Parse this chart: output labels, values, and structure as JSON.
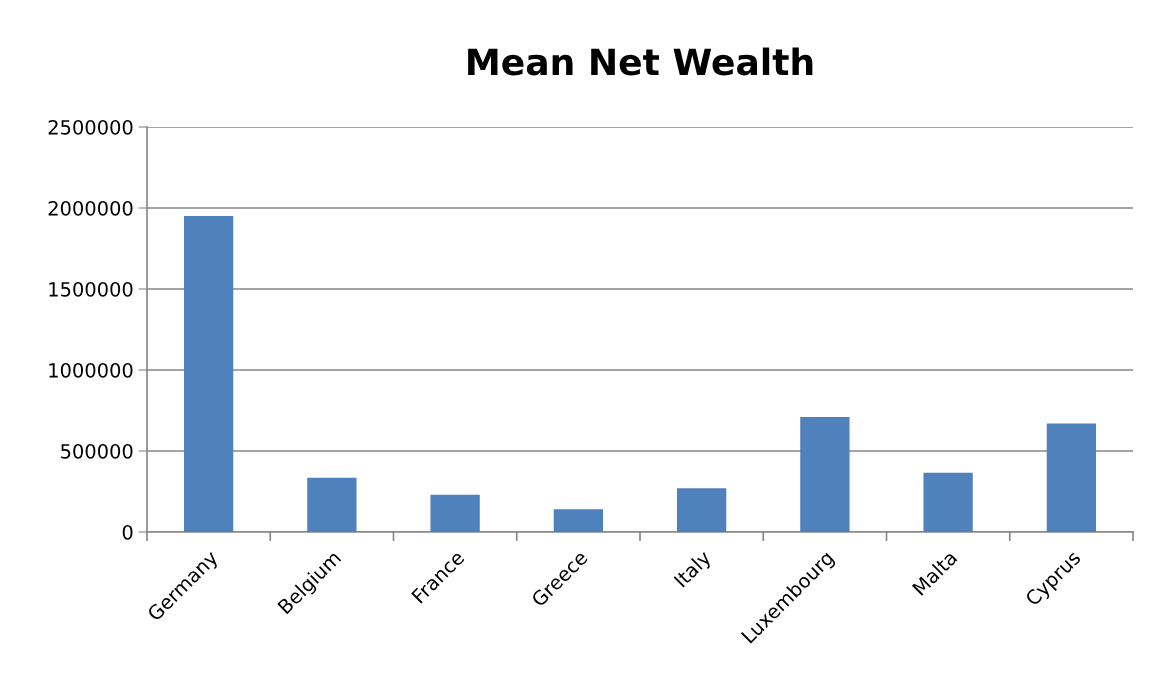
{
  "chart_data": {
    "type": "bar",
    "title": "Mean Net Wealth",
    "categories": [
      "Germany",
      "Belgium",
      "France",
      "Greece",
      "Italy",
      "Luxembourg",
      "Malta",
      "Cyprus"
    ],
    "values": [
      1950000,
      335000,
      230000,
      140000,
      270000,
      710000,
      365000,
      670000
    ],
    "color": "#4f81bd",
    "ylim": [
      0,
      2500000
    ],
    "yticks": [
      0,
      500000,
      1000000,
      1500000,
      2000000,
      2500000
    ],
    "grid": "y",
    "legend": false
  }
}
